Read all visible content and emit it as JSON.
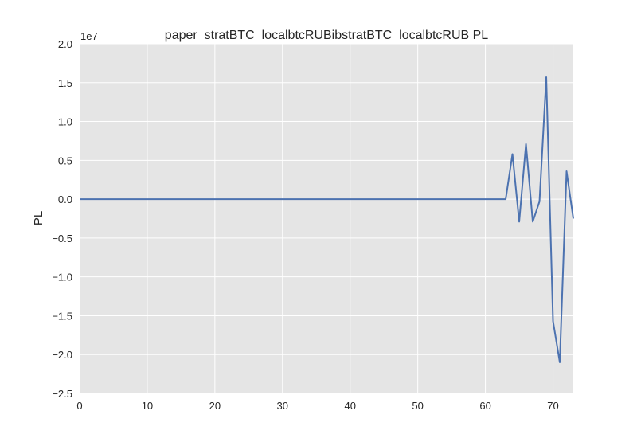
{
  "chart_data": {
    "type": "line",
    "title": "paper_stratBTC_localbtcRUBibstratBTC_localbtcRUB PL",
    "xlabel": "",
    "ylabel": "PL",
    "y_offset_label": "1e7",
    "xlim": [
      0,
      73
    ],
    "ylim": [
      -2.5,
      2.0
    ],
    "y_units": "1e7",
    "x_ticks": [
      0,
      10,
      20,
      30,
      40,
      50,
      60,
      70
    ],
    "x_tick_labels": [
      "0",
      "10",
      "20",
      "30",
      "40",
      "50",
      "60",
      "70"
    ],
    "y_ticks": [
      2.0,
      1.5,
      1.0,
      0.5,
      0.0,
      -0.5,
      -1.0,
      -1.5,
      -2.0,
      -2.5
    ],
    "y_tick_labels": [
      "2.0",
      "1.5",
      "1.0",
      "0.5",
      "0.0",
      "−0.5",
      "−1.0",
      "−1.5",
      "−2.0",
      "−2.5"
    ],
    "grid": true,
    "background": "#e5e5e5",
    "line_color": "#4c72b0",
    "series": [
      {
        "x": [
          0,
          63,
          64,
          65,
          66,
          67,
          68,
          69,
          70,
          71,
          72,
          73
        ],
        "values": [
          0,
          0,
          0.58,
          -0.29,
          0.71,
          -0.29,
          -0.03,
          1.57,
          -1.57,
          -2.1,
          0.36,
          -0.25
        ]
      }
    ]
  }
}
